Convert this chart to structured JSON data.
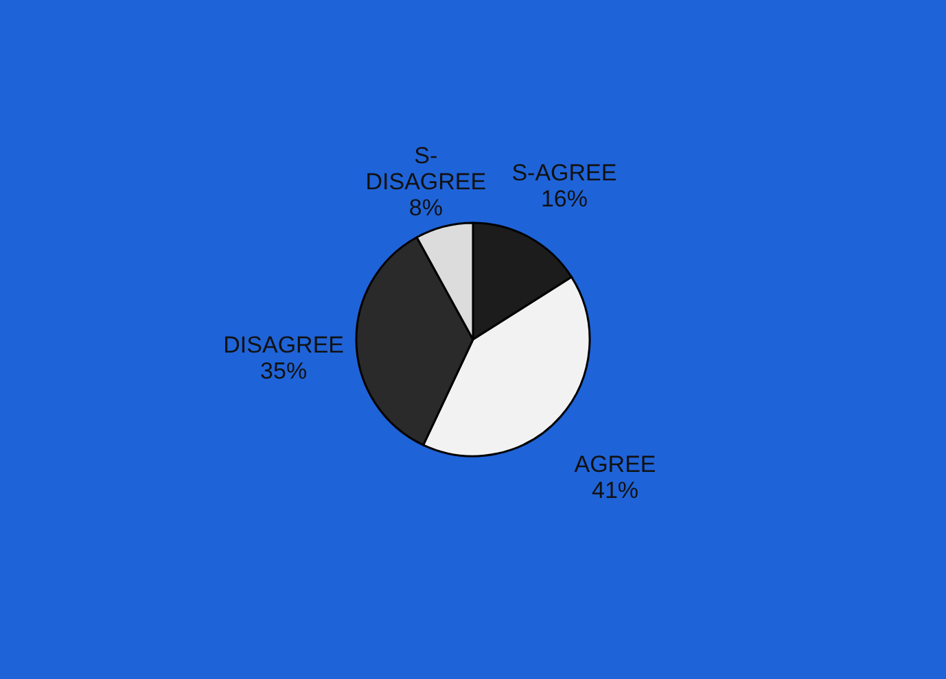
{
  "chart_data": {
    "type": "pie",
    "categories": [
      "S-AGREE",
      "AGREE",
      "DISAGREE",
      "S-DISAGREE"
    ],
    "values": [
      16,
      41,
      35,
      8
    ],
    "value_labels": [
      "16%",
      "41%",
      "35%",
      "8%"
    ],
    "colors": [
      "#1c1c1c",
      "#f2f2f2",
      "#2a2a2a",
      "#dcdcdc"
    ],
    "legend": false
  }
}
